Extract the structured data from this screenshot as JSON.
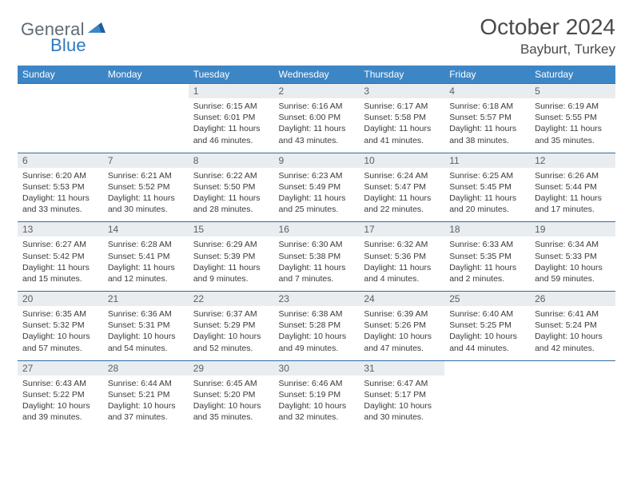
{
  "brand": {
    "part1": "General",
    "part2": "Blue"
  },
  "title": "October 2024",
  "location": "Bayburt, Turkey",
  "colors": {
    "header_bg": "#3d86c6",
    "daybar_bg": "#e9edf0",
    "rule": "#2f6aa3",
    "logo_gray": "#5f6b75",
    "logo_blue": "#2f78bd"
  },
  "weekdays": [
    "Sunday",
    "Monday",
    "Tuesday",
    "Wednesday",
    "Thursday",
    "Friday",
    "Saturday"
  ],
  "weeks": [
    [
      null,
      null,
      {
        "n": "1",
        "sr": "6:15 AM",
        "ss": "6:01 PM",
        "dh": "11",
        "dm": "46"
      },
      {
        "n": "2",
        "sr": "6:16 AM",
        "ss": "6:00 PM",
        "dh": "11",
        "dm": "43"
      },
      {
        "n": "3",
        "sr": "6:17 AM",
        "ss": "5:58 PM",
        "dh": "11",
        "dm": "41"
      },
      {
        "n": "4",
        "sr": "6:18 AM",
        "ss": "5:57 PM",
        "dh": "11",
        "dm": "38"
      },
      {
        "n": "5",
        "sr": "6:19 AM",
        "ss": "5:55 PM",
        "dh": "11",
        "dm": "35"
      }
    ],
    [
      {
        "n": "6",
        "sr": "6:20 AM",
        "ss": "5:53 PM",
        "dh": "11",
        "dm": "33"
      },
      {
        "n": "7",
        "sr": "6:21 AM",
        "ss": "5:52 PM",
        "dh": "11",
        "dm": "30"
      },
      {
        "n": "8",
        "sr": "6:22 AM",
        "ss": "5:50 PM",
        "dh": "11",
        "dm": "28"
      },
      {
        "n": "9",
        "sr": "6:23 AM",
        "ss": "5:49 PM",
        "dh": "11",
        "dm": "25"
      },
      {
        "n": "10",
        "sr": "6:24 AM",
        "ss": "5:47 PM",
        "dh": "11",
        "dm": "22"
      },
      {
        "n": "11",
        "sr": "6:25 AM",
        "ss": "5:45 PM",
        "dh": "11",
        "dm": "20"
      },
      {
        "n": "12",
        "sr": "6:26 AM",
        "ss": "5:44 PM",
        "dh": "11",
        "dm": "17"
      }
    ],
    [
      {
        "n": "13",
        "sr": "6:27 AM",
        "ss": "5:42 PM",
        "dh": "11",
        "dm": "15"
      },
      {
        "n": "14",
        "sr": "6:28 AM",
        "ss": "5:41 PM",
        "dh": "11",
        "dm": "12"
      },
      {
        "n": "15",
        "sr": "6:29 AM",
        "ss": "5:39 PM",
        "dh": "11",
        "dm": "9"
      },
      {
        "n": "16",
        "sr": "6:30 AM",
        "ss": "5:38 PM",
        "dh": "11",
        "dm": "7"
      },
      {
        "n": "17",
        "sr": "6:32 AM",
        "ss": "5:36 PM",
        "dh": "11",
        "dm": "4"
      },
      {
        "n": "18",
        "sr": "6:33 AM",
        "ss": "5:35 PM",
        "dh": "11",
        "dm": "2"
      },
      {
        "n": "19",
        "sr": "6:34 AM",
        "ss": "5:33 PM",
        "dh": "10",
        "dm": "59"
      }
    ],
    [
      {
        "n": "20",
        "sr": "6:35 AM",
        "ss": "5:32 PM",
        "dh": "10",
        "dm": "57"
      },
      {
        "n": "21",
        "sr": "6:36 AM",
        "ss": "5:31 PM",
        "dh": "10",
        "dm": "54"
      },
      {
        "n": "22",
        "sr": "6:37 AM",
        "ss": "5:29 PM",
        "dh": "10",
        "dm": "52"
      },
      {
        "n": "23",
        "sr": "6:38 AM",
        "ss": "5:28 PM",
        "dh": "10",
        "dm": "49"
      },
      {
        "n": "24",
        "sr": "6:39 AM",
        "ss": "5:26 PM",
        "dh": "10",
        "dm": "47"
      },
      {
        "n": "25",
        "sr": "6:40 AM",
        "ss": "5:25 PM",
        "dh": "10",
        "dm": "44"
      },
      {
        "n": "26",
        "sr": "6:41 AM",
        "ss": "5:24 PM",
        "dh": "10",
        "dm": "42"
      }
    ],
    [
      {
        "n": "27",
        "sr": "6:43 AM",
        "ss": "5:22 PM",
        "dh": "10",
        "dm": "39"
      },
      {
        "n": "28",
        "sr": "6:44 AM",
        "ss": "5:21 PM",
        "dh": "10",
        "dm": "37"
      },
      {
        "n": "29",
        "sr": "6:45 AM",
        "ss": "5:20 PM",
        "dh": "10",
        "dm": "35"
      },
      {
        "n": "30",
        "sr": "6:46 AM",
        "ss": "5:19 PM",
        "dh": "10",
        "dm": "32"
      },
      {
        "n": "31",
        "sr": "6:47 AM",
        "ss": "5:17 PM",
        "dh": "10",
        "dm": "30"
      },
      null,
      null
    ]
  ]
}
